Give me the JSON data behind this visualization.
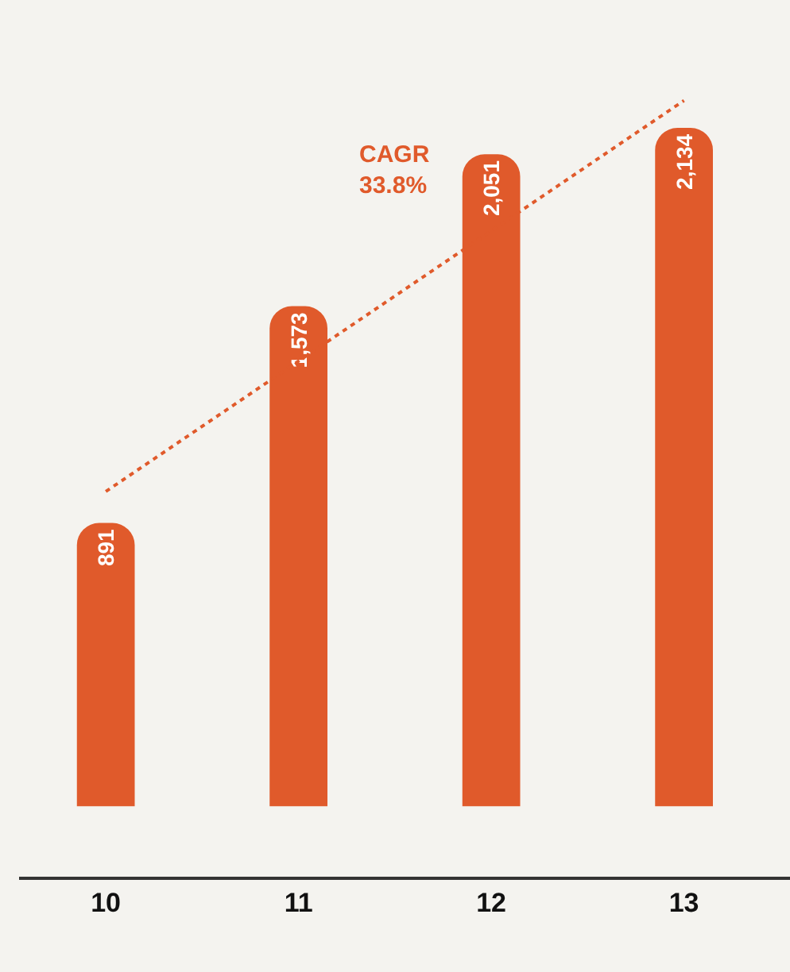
{
  "chart_data": {
    "type": "bar",
    "categories": [
      "10",
      "11",
      "12",
      "13"
    ],
    "series": [
      {
        "color": "#e05a2b",
        "values": [
          891,
          1573,
          2051,
          2134
        ],
        "value_labels": [
          "891",
          "1,573",
          "2,051",
          "2,134"
        ]
      },
      {
        "type": "line",
        "x": [
          "10",
          "13"
        ],
        "color": "#e05a2b",
        "values": [
          990,
          2220
        ],
        "line_style": "dotted"
      }
    ],
    "annotations": [
      "CAGR\n33.8%"
    ]
  }
}
